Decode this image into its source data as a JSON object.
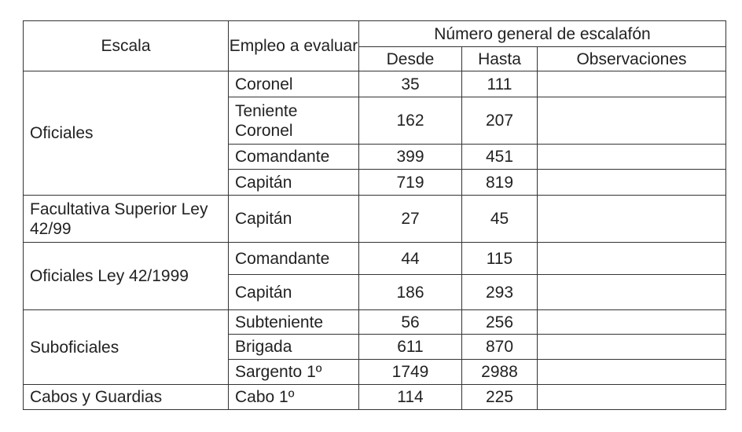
{
  "headers": {
    "escala": "Escala",
    "empleo": "Empleo a evaluar",
    "numero": "Número general de escalafón",
    "desde": "Desde",
    "hasta": "Hasta",
    "observaciones": "Observaciones"
  },
  "groups": [
    {
      "escala": "Oficiales",
      "rows": [
        {
          "empleo": "Coronel",
          "desde": "35",
          "hasta": "111",
          "observaciones": ""
        },
        {
          "empleo": "Teniente Coronel",
          "desde": "162",
          "hasta": "207",
          "observaciones": ""
        },
        {
          "empleo": "Comandante",
          "desde": "399",
          "hasta": "451",
          "observaciones": ""
        },
        {
          "empleo": "Capitán",
          "desde": "719",
          "hasta": "819",
          "observaciones": ""
        }
      ]
    },
    {
      "escala": "Facultativa Superior Ley 42/99",
      "rows": [
        {
          "empleo": "Capitán",
          "desde": "27",
          "hasta": "45",
          "observaciones": ""
        }
      ]
    },
    {
      "escala": "Oficiales Ley 42/1999",
      "rows": [
        {
          "empleo": "Comandante",
          "desde": "44",
          "hasta": "115",
          "observaciones": ""
        },
        {
          "empleo": "Capitán",
          "desde": "186",
          "hasta": "293",
          "observaciones": ""
        }
      ]
    },
    {
      "escala": "Suboficiales",
      "rows": [
        {
          "empleo": "Subteniente",
          "desde": "56",
          "hasta": "256",
          "observaciones": ""
        },
        {
          "empleo": "Brigada",
          "desde": "611",
          "hasta": "870",
          "observaciones": ""
        },
        {
          "empleo": "Sargento 1º",
          "desde": "1749",
          "hasta": "2988",
          "observaciones": ""
        }
      ]
    },
    {
      "escala": "Cabos y Guardias",
      "rows": [
        {
          "empleo": "Cabo 1º",
          "desde": "114",
          "hasta": "225",
          "observaciones": ""
        }
      ]
    }
  ]
}
